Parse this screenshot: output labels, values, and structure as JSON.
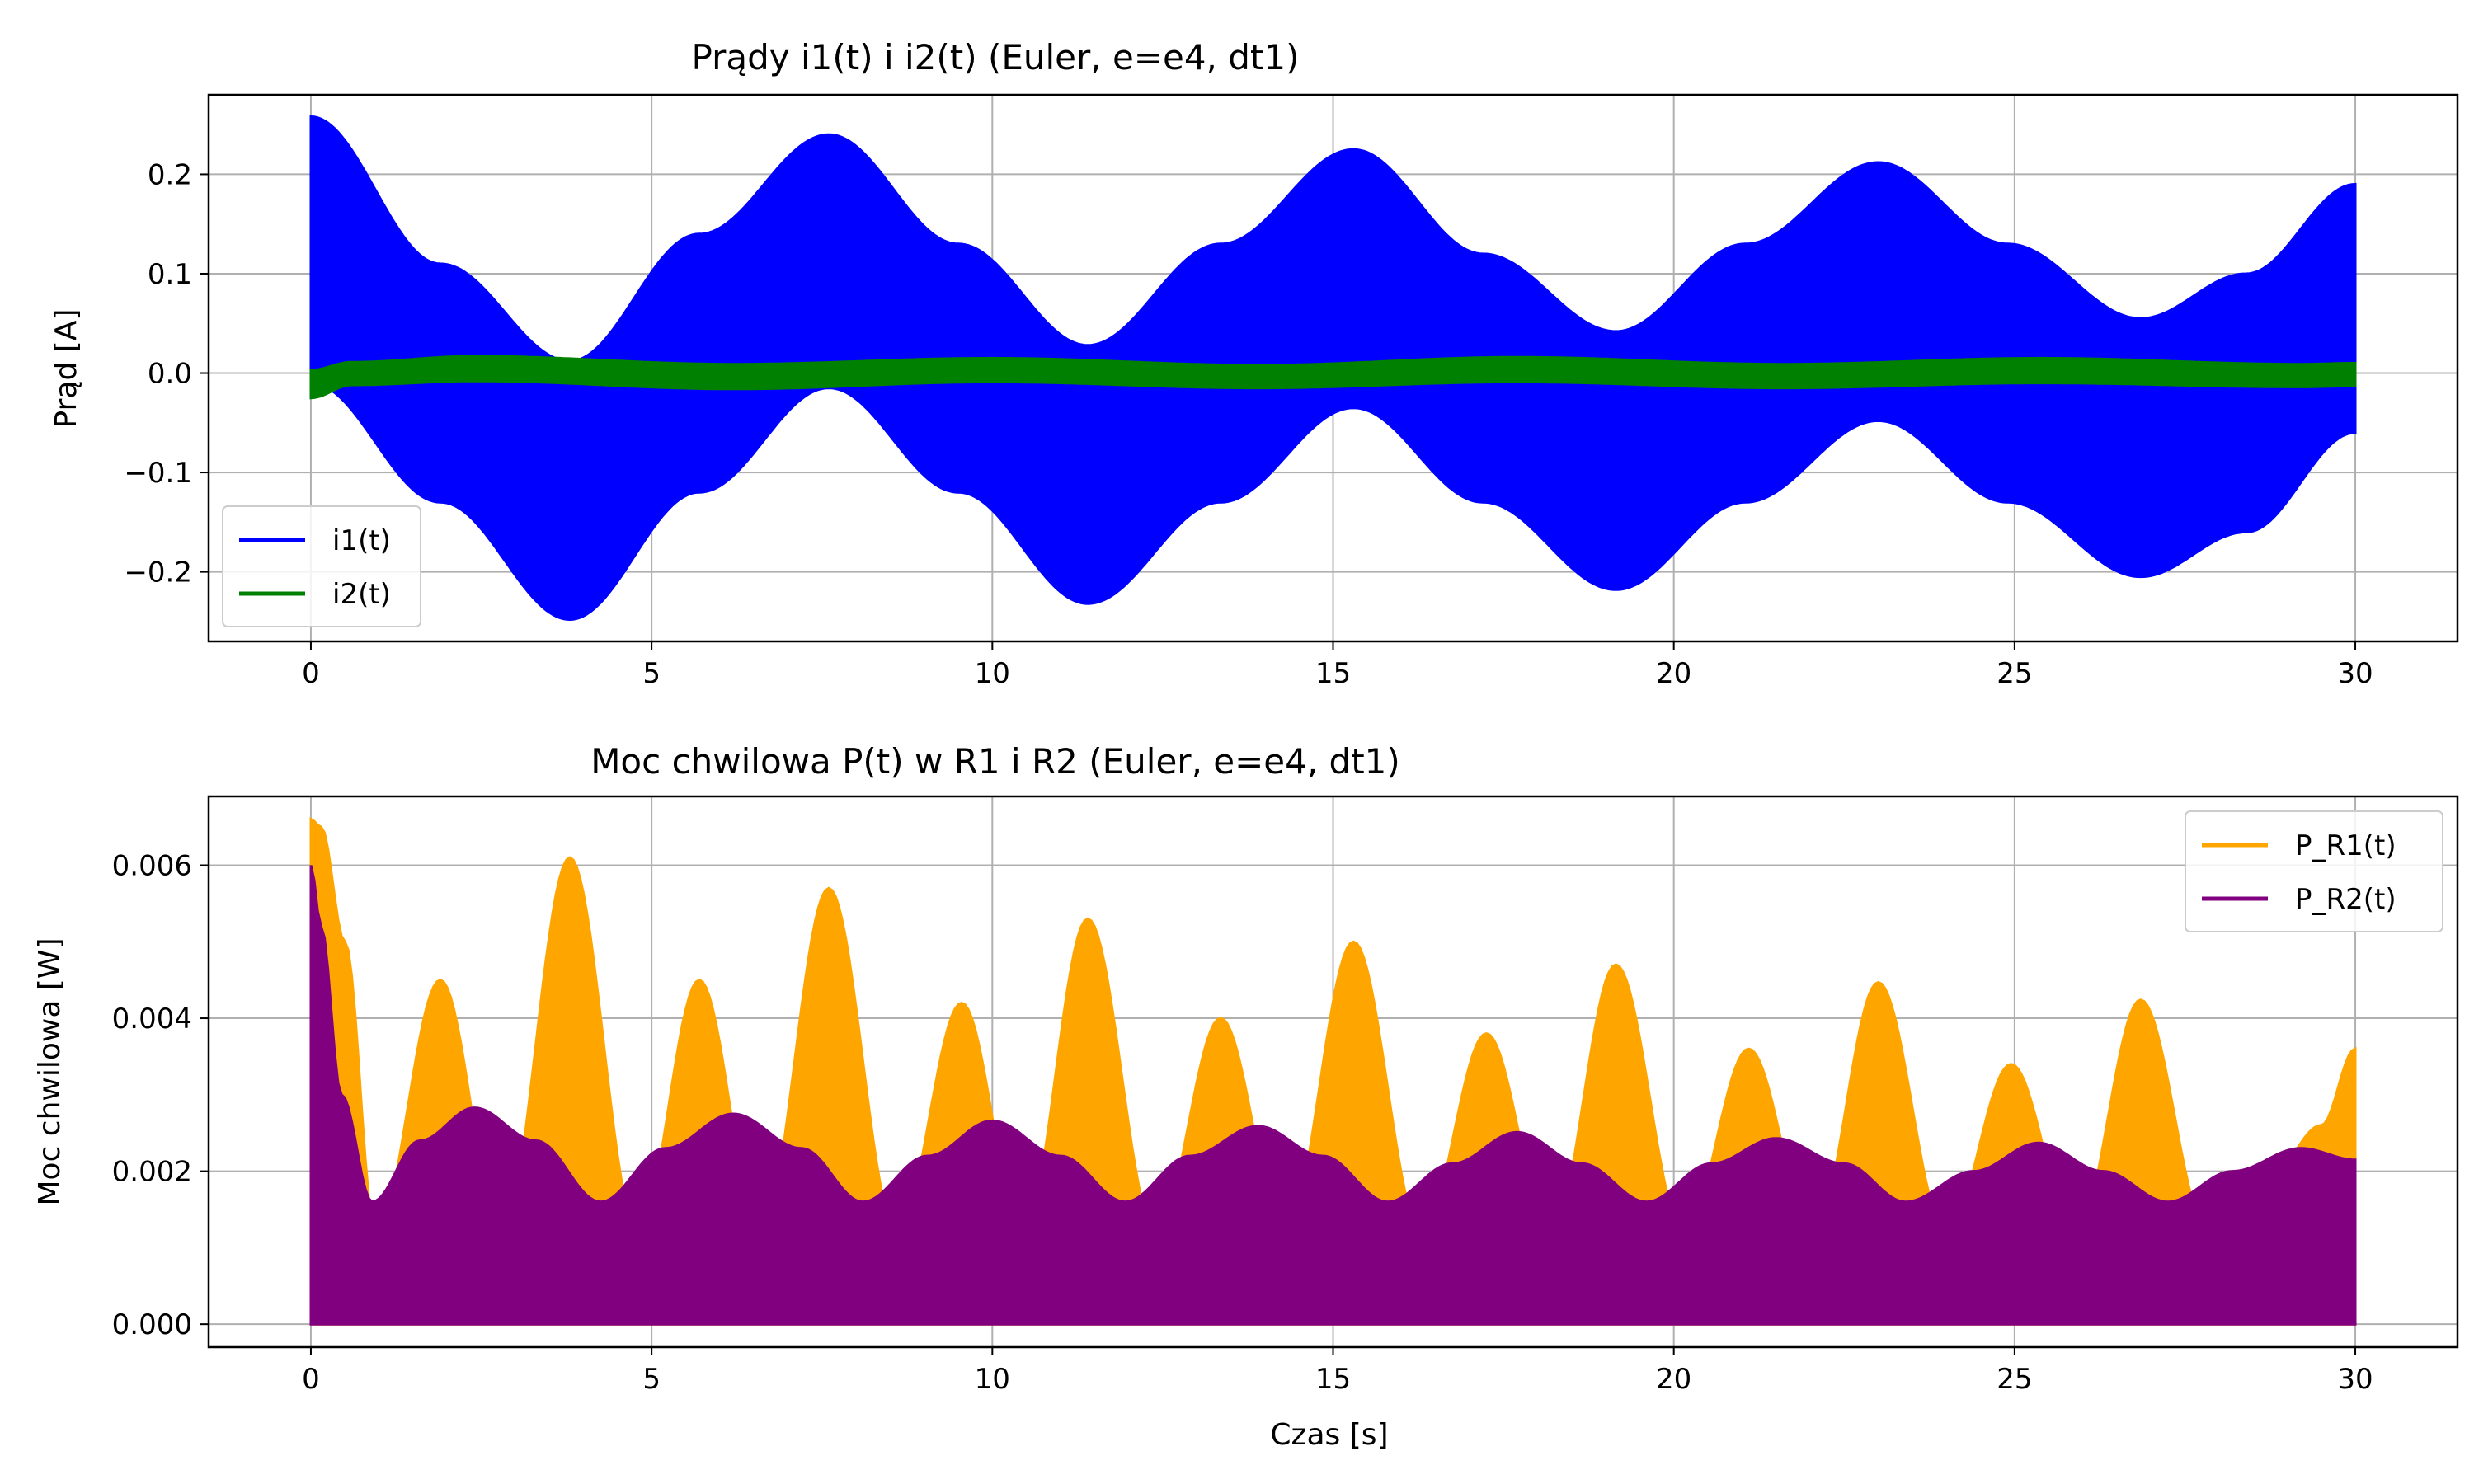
{
  "chart_data": [
    {
      "type": "line",
      "title": "Prądy i1(t) i i2(t) (Euler, e=e4, dt1)",
      "xlabel": "",
      "ylabel": "Prąd [A]",
      "xlim": [
        -1.5,
        31.5
      ],
      "ylim": [
        -0.27,
        0.28
      ],
      "xticks": [
        "0",
        "5",
        "10",
        "15",
        "20",
        "25",
        "30"
      ],
      "xtick_values": [
        0,
        5,
        10,
        15,
        20,
        25,
        30
      ],
      "yticks": [
        "−0.2",
        "−0.1",
        "0.0",
        "0.1",
        "0.2"
      ],
      "ytick_values": [
        -0.2,
        -0.1,
        0.0,
        0.1,
        0.2
      ],
      "grid": true,
      "legend_position": "lower-left",
      "series": [
        {
          "name": "i1(t)",
          "color": "#0000ff",
          "style": "dense-oscillation envelope",
          "x": [
            0,
            1.9,
            3.8,
            5.7,
            7.6,
            9.5,
            11.4,
            13.35,
            15.3,
            17.2,
            19.15,
            21.05,
            23.0,
            24.9,
            26.85,
            28.4,
            30.0
          ],
          "upper": [
            0.258,
            0.11,
            0.012,
            0.14,
            0.24,
            0.13,
            0.028,
            0.13,
            0.225,
            0.12,
            0.042,
            0.13,
            0.212,
            0.13,
            0.055,
            0.1,
            0.19
          ],
          "lower": [
            -0.01,
            -0.13,
            -0.248,
            -0.12,
            -0.015,
            -0.12,
            -0.232,
            -0.13,
            -0.035,
            -0.13,
            -0.218,
            -0.13,
            -0.048,
            -0.13,
            -0.205,
            -0.16,
            -0.06
          ]
        },
        {
          "name": "i2(t)",
          "color": "#008000",
          "style": "thin band",
          "x": [
            0,
            0.6,
            2.4,
            6.2,
            10.0,
            13.9,
            17.7,
            21.6,
            25.4,
            29.2,
            30.0
          ],
          "upper": [
            0.003,
            0.011,
            0.017,
            0.009,
            0.015,
            0.008,
            0.016,
            0.009,
            0.015,
            0.009,
            0.01
          ],
          "lower": [
            -0.025,
            -0.012,
            -0.008,
            -0.016,
            -0.009,
            -0.015,
            -0.009,
            -0.015,
            -0.01,
            -0.014,
            -0.013
          ]
        }
      ]
    },
    {
      "type": "area",
      "title": "Moc chwilowa P(t) w R1 i R2 (Euler, e=e4, dt1)",
      "xlabel": "Czas [s]",
      "ylabel": "Moc chwilowa [W]",
      "xlim": [
        -1.5,
        31.5
      ],
      "ylim": [
        -0.0003,
        0.0069
      ],
      "xticks": [
        "0",
        "5",
        "10",
        "15",
        "20",
        "25",
        "30"
      ],
      "xtick_values": [
        0,
        5,
        10,
        15,
        20,
        25,
        30
      ],
      "yticks": [
        "0.000",
        "0.002",
        "0.004",
        "0.006"
      ],
      "ytick_values": [
        0.0,
        0.002,
        0.004,
        0.006
      ],
      "grid": true,
      "legend_position": "upper-right",
      "series": [
        {
          "name": "P_R1(t)",
          "color": "#ffa500",
          "x": [
            0,
            0.15,
            0.5,
            0.95,
            1.9,
            2.8,
            3.8,
            4.8,
            5.7,
            6.6,
            7.6,
            8.6,
            9.55,
            10.45,
            11.4,
            12.4,
            13.35,
            14.3,
            15.3,
            16.3,
            17.25,
            18.2,
            19.15,
            20.15,
            21.1,
            22.05,
            23.0,
            24.0,
            24.95,
            25.9,
            26.85,
            27.85,
            28.8,
            29.5,
            30.0
          ],
          "values": [
            0.0066,
            0.0065,
            0.005,
            0.0012,
            0.0045,
            0.0012,
            0.0061,
            0.0012,
            0.0045,
            0.0012,
            0.0057,
            0.0012,
            0.0042,
            0.0012,
            0.0053,
            0.0012,
            0.004,
            0.0012,
            0.005,
            0.0012,
            0.0038,
            0.0012,
            0.0047,
            0.0012,
            0.0036,
            0.0012,
            0.00447,
            0.0012,
            0.0034,
            0.0012,
            0.00424,
            0.0012,
            0.002,
            0.0026,
            0.0036
          ]
        },
        {
          "name": "P_R2(t)",
          "color": "#800080",
          "x": [
            0,
            0.15,
            0.45,
            0.9,
            1.6,
            2.4,
            3.3,
            4.25,
            5.2,
            6.2,
            7.2,
            8.1,
            9.05,
            10.0,
            11.0,
            11.95,
            12.9,
            13.9,
            14.85,
            15.8,
            16.75,
            17.7,
            18.65,
            19.6,
            20.55,
            21.5,
            22.5,
            23.4,
            24.4,
            25.35,
            26.3,
            27.25,
            28.2,
            29.2,
            30.0
          ],
          "values": [
            0.006,
            0.0052,
            0.003,
            0.0016,
            0.0024,
            0.00283,
            0.0024,
            0.0016,
            0.0023,
            0.00275,
            0.0023,
            0.0016,
            0.0022,
            0.00266,
            0.0022,
            0.0016,
            0.0022,
            0.00259,
            0.0022,
            0.0016,
            0.0021,
            0.00251,
            0.0021,
            0.0016,
            0.0021,
            0.00243,
            0.0021,
            0.0016,
            0.002,
            0.00237,
            0.002,
            0.0016,
            0.002,
            0.0023,
            0.00215
          ]
        }
      ]
    }
  ]
}
